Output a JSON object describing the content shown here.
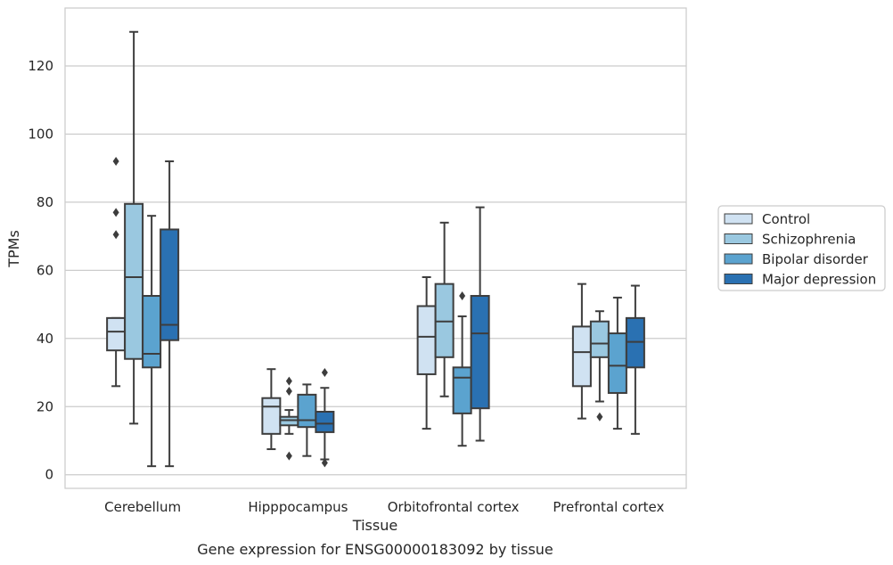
{
  "chart_data": {
    "type": "box",
    "ylabel": "TPMs",
    "xlabel": "Tissue",
    "caption": "Gene expression for ENSG00000183092 by tissue",
    "ylim": [
      -4,
      137
    ],
    "yticks": [
      0,
      20,
      40,
      60,
      80,
      100,
      120
    ],
    "grid": "horizontal",
    "legend_position": "right",
    "categories": [
      "Cerebellum",
      "Hipppocampus",
      "Orbitofrontal cortex",
      "Prefrontal cortex"
    ],
    "series": [
      {
        "name": "Control",
        "color": "#d0e2f2",
        "boxes": [
          {
            "whislo": 26,
            "q1": 36.5,
            "med": 42,
            "q3": 46,
            "whishi": 46,
            "fliers": [
              92,
              77,
              70.5
            ]
          },
          {
            "whislo": 7.5,
            "q1": 12,
            "med": 20,
            "q3": 22.5,
            "whishi": 31,
            "fliers": []
          },
          {
            "whislo": 13.5,
            "q1": 29.5,
            "med": 40.5,
            "q3": 49.5,
            "whishi": 58,
            "fliers": []
          },
          {
            "whislo": 16.5,
            "q1": 26,
            "med": 36,
            "q3": 43.5,
            "whishi": 56,
            "fliers": []
          }
        ]
      },
      {
        "name": "Schizophrenia",
        "color": "#9ac8e0",
        "boxes": [
          {
            "whislo": 15,
            "q1": 34,
            "med": 58,
            "q3": 79.5,
            "whishi": 130,
            "fliers": []
          },
          {
            "whislo": 12,
            "q1": 14.5,
            "med": 16,
            "q3": 17,
            "whishi": 19,
            "fliers": [
              27.5,
              24.5,
              5.5
            ]
          },
          {
            "whislo": 23,
            "q1": 34.5,
            "med": 45,
            "q3": 56,
            "whishi": 74,
            "fliers": []
          },
          {
            "whislo": 21.5,
            "q1": 34.5,
            "med": 38.5,
            "q3": 45,
            "whishi": 48,
            "fliers": [
              17
            ]
          }
        ]
      },
      {
        "name": "Bipolar disorder",
        "color": "#5ba3cf",
        "boxes": [
          {
            "whislo": 2.5,
            "q1": 31.5,
            "med": 35.5,
            "q3": 52.5,
            "whishi": 76,
            "fliers": []
          },
          {
            "whislo": 5.5,
            "q1": 14,
            "med": 16,
            "q3": 23.5,
            "whishi": 26.5,
            "fliers": []
          },
          {
            "whislo": 8.5,
            "q1": 18,
            "med": 28.5,
            "q3": 31.5,
            "whishi": 46.5,
            "fliers": [
              52.5
            ]
          },
          {
            "whislo": 13.5,
            "q1": 24,
            "med": 32,
            "q3": 41.5,
            "whishi": 52,
            "fliers": []
          }
        ]
      },
      {
        "name": "Major depression",
        "color": "#2a71b2",
        "boxes": [
          {
            "whislo": 2.5,
            "q1": 39.5,
            "med": 44,
            "q3": 72,
            "whishi": 92,
            "fliers": []
          },
          {
            "whislo": 4.5,
            "q1": 12.5,
            "med": 15,
            "q3": 18.5,
            "whishi": 25.5,
            "fliers": [
              30,
              3.5
            ]
          },
          {
            "whislo": 10,
            "q1": 19.5,
            "med": 41.5,
            "q3": 52.5,
            "whishi": 78.5,
            "fliers": []
          },
          {
            "whislo": 12,
            "q1": 31.5,
            "med": 39,
            "q3": 46,
            "whishi": 55.5,
            "fliers": []
          }
        ]
      }
    ]
  }
}
